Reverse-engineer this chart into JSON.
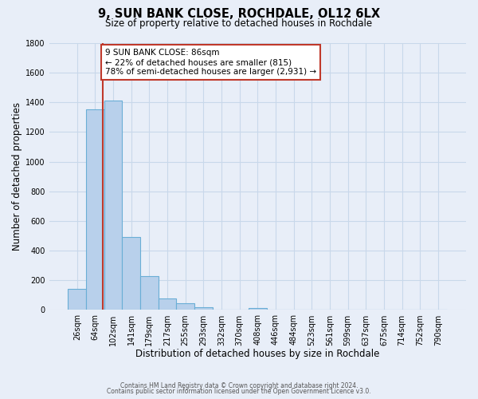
{
  "title_line1": "9, SUN BANK CLOSE, ROCHDALE, OL12 6LX",
  "title_line2": "Size of property relative to detached houses in Rochdale",
  "xlabel": "Distribution of detached houses by size in Rochdale",
  "ylabel": "Number of detached properties",
  "bar_labels": [
    "26sqm",
    "64sqm",
    "102sqm",
    "141sqm",
    "179sqm",
    "217sqm",
    "255sqm",
    "293sqm",
    "332sqm",
    "370sqm",
    "408sqm",
    "446sqm",
    "484sqm",
    "523sqm",
    "561sqm",
    "599sqm",
    "637sqm",
    "675sqm",
    "714sqm",
    "752sqm",
    "790sqm"
  ],
  "bar_heights": [
    140,
    1355,
    1410,
    490,
    230,
    80,
    45,
    20,
    0,
    0,
    15,
    0,
    0,
    0,
    0,
    0,
    0,
    0,
    0,
    0,
    0
  ],
  "bar_color": "#b8d0eb",
  "bar_edge_color": "#6aaed6",
  "grid_color": "#c8d8ea",
  "background_color": "#e8eef8",
  "vline_color": "#c0392b",
  "vline_x": 1.42,
  "annotation_line1": "9 SUN BANK CLOSE: 86sqm",
  "annotation_line2": "← 22% of detached houses are smaller (815)",
  "annotation_line3": "78% of semi-detached houses are larger (2,931) →",
  "annotation_box_color": "#ffffff",
  "annotation_box_edge": "#c0392b",
  "footer_line1": "Contains HM Land Registry data © Crown copyright and database right 2024.",
  "footer_line2": "Contains public sector information licensed under the Open Government Licence v3.0.",
  "ylim": [
    0,
    1800
  ],
  "yticks": [
    0,
    200,
    400,
    600,
    800,
    1000,
    1200,
    1400,
    1600,
    1800
  ]
}
